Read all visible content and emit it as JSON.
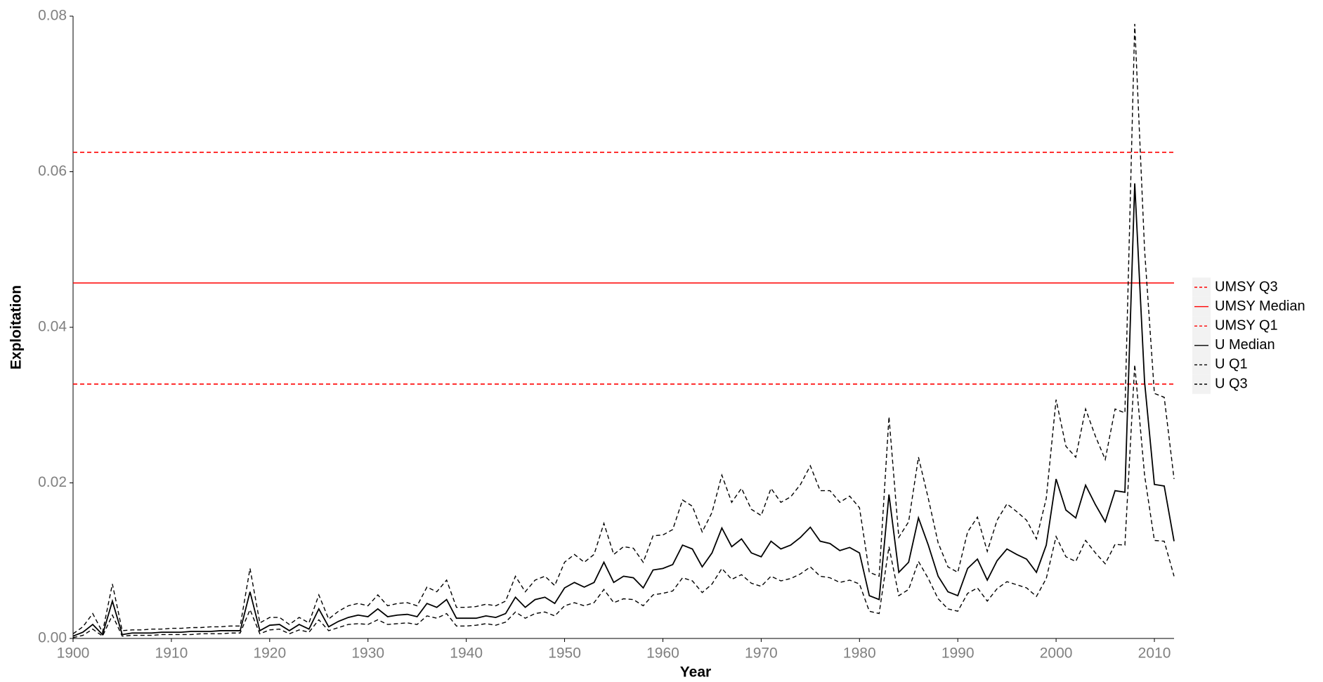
{
  "chart_data": {
    "type": "line",
    "x_label": "Year",
    "y_label": "Exploitation",
    "x": [
      1900,
      1901,
      1902,
      1903,
      1904,
      1905,
      1906,
      1907,
      1908,
      1909,
      1910,
      1911,
      1912,
      1913,
      1914,
      1915,
      1916,
      1917,
      1918,
      1919,
      1920,
      1921,
      1922,
      1923,
      1924,
      1925,
      1926,
      1927,
      1928,
      1929,
      1930,
      1931,
      1932,
      1933,
      1934,
      1935,
      1936,
      1937,
      1938,
      1939,
      1940,
      1941,
      1942,
      1943,
      1944,
      1945,
      1946,
      1947,
      1948,
      1949,
      1950,
      1951,
      1952,
      1953,
      1954,
      1955,
      1956,
      1957,
      1958,
      1959,
      1960,
      1961,
      1962,
      1963,
      1964,
      1965,
      1966,
      1967,
      1968,
      1969,
      1970,
      1971,
      1972,
      1973,
      1974,
      1975,
      1976,
      1977,
      1978,
      1979,
      1980,
      1981,
      1982,
      1983,
      1984,
      1985,
      1986,
      1987,
      1988,
      1989,
      1990,
      1991,
      1992,
      1993,
      1994,
      1995,
      1996,
      1997,
      1998,
      1999,
      2000,
      2001,
      2002,
      2003,
      2004,
      2005,
      2006,
      2007,
      2008,
      2009,
      2010,
      2011,
      2012
    ],
    "hlines": [
      {
        "name": "UMSY Q3",
        "color": "#ff0000",
        "dash": true,
        "value": 0.0625
      },
      {
        "name": "UMSY Median",
        "color": "#ff0000",
        "dash": false,
        "value": 0.0457
      },
      {
        "name": "UMSY Q1",
        "color": "#ff0000",
        "dash": true,
        "value": 0.0327
      }
    ],
    "series": [
      {
        "name": "U Median",
        "color": "#000000",
        "dash": false,
        "values": [
          0.0003,
          0.0008,
          0.0018,
          0.0005,
          0.0048,
          0.0005,
          0.0007,
          0.0007,
          0.0007,
          0.0008,
          0.0008,
          0.0008,
          0.0009,
          0.0009,
          0.0009,
          0.001,
          0.001,
          0.001,
          0.006,
          0.001,
          0.0017,
          0.0018,
          0.001,
          0.0018,
          0.0012,
          0.0038,
          0.0015,
          0.0022,
          0.0027,
          0.003,
          0.0028,
          0.0038,
          0.0028,
          0.003,
          0.0031,
          0.0028,
          0.0045,
          0.004,
          0.005,
          0.0026,
          0.0026,
          0.0026,
          0.0029,
          0.0027,
          0.0032,
          0.0053,
          0.004,
          0.005,
          0.0053,
          0.0045,
          0.0065,
          0.0072,
          0.0066,
          0.0072,
          0.0098,
          0.0072,
          0.008,
          0.0078,
          0.0065,
          0.0088,
          0.009,
          0.0095,
          0.012,
          0.0115,
          0.0092,
          0.011,
          0.0142,
          0.0118,
          0.0128,
          0.011,
          0.0105,
          0.0125,
          0.0115,
          0.012,
          0.013,
          0.0143,
          0.0125,
          0.0122,
          0.0113,
          0.0117,
          0.011,
          0.0055,
          0.005,
          0.0185,
          0.0085,
          0.0098,
          0.0155,
          0.012,
          0.008,
          0.006,
          0.0055,
          0.009,
          0.0102,
          0.0075,
          0.01,
          0.0115,
          0.0108,
          0.0102,
          0.0085,
          0.012,
          0.0205,
          0.0165,
          0.0155,
          0.0197,
          0.0172,
          0.015,
          0.019,
          0.0188,
          0.0585,
          0.033,
          0.0198,
          0.0196,
          0.0125
        ]
      },
      {
        "name": "U Q1",
        "color": "#000000",
        "dash": true,
        "values": [
          0.0001,
          0.0004,
          0.0012,
          0.0003,
          0.003,
          0.0003,
          0.0004,
          0.0004,
          0.0004,
          0.0005,
          0.0005,
          0.0005,
          0.0005,
          0.0006,
          0.0006,
          0.0006,
          0.0007,
          0.0007,
          0.0037,
          0.0006,
          0.0011,
          0.0012,
          0.0006,
          0.0011,
          0.0008,
          0.0024,
          0.001,
          0.0014,
          0.0018,
          0.0019,
          0.0018,
          0.0024,
          0.0018,
          0.0019,
          0.002,
          0.0018,
          0.0029,
          0.0026,
          0.0032,
          0.0016,
          0.0016,
          0.0017,
          0.0019,
          0.0017,
          0.0021,
          0.0034,
          0.0026,
          0.0032,
          0.0034,
          0.0029,
          0.0042,
          0.0046,
          0.0042,
          0.0046,
          0.0063,
          0.0046,
          0.0051,
          0.005,
          0.0042,
          0.0056,
          0.0058,
          0.0061,
          0.0078,
          0.0074,
          0.0059,
          0.007,
          0.009,
          0.0076,
          0.0082,
          0.0071,
          0.0067,
          0.008,
          0.0074,
          0.0077,
          0.0083,
          0.0092,
          0.008,
          0.0078,
          0.0072,
          0.0075,
          0.007,
          0.0035,
          0.0032,
          0.0118,
          0.0055,
          0.0063,
          0.0099,
          0.0077,
          0.0051,
          0.0038,
          0.0035,
          0.0058,
          0.0065,
          0.0048,
          0.0064,
          0.0073,
          0.0069,
          0.0065,
          0.0054,
          0.0077,
          0.0131,
          0.0105,
          0.0099,
          0.0126,
          0.011,
          0.0096,
          0.0121,
          0.012,
          0.0352,
          0.021,
          0.0126,
          0.0125,
          0.008
        ]
      },
      {
        "name": "U Q3",
        "color": "#000000",
        "dash": true,
        "values": [
          0.0006,
          0.0015,
          0.0032,
          0.0008,
          0.007,
          0.001,
          0.0011,
          0.0011,
          0.0012,
          0.0012,
          0.0013,
          0.0013,
          0.0014,
          0.0014,
          0.0015,
          0.0015,
          0.0016,
          0.0016,
          0.009,
          0.002,
          0.0027,
          0.0027,
          0.0018,
          0.0027,
          0.002,
          0.0056,
          0.0025,
          0.0035,
          0.0042,
          0.0045,
          0.0042,
          0.0056,
          0.0042,
          0.0045,
          0.0046,
          0.0042,
          0.0066,
          0.006,
          0.0075,
          0.004,
          0.004,
          0.0041,
          0.0044,
          0.0042,
          0.0048,
          0.008,
          0.006,
          0.0075,
          0.008,
          0.0068,
          0.0098,
          0.0108,
          0.0098,
          0.0108,
          0.0148,
          0.0108,
          0.0118,
          0.0116,
          0.0098,
          0.0132,
          0.0133,
          0.014,
          0.0178,
          0.017,
          0.0137,
          0.0162,
          0.021,
          0.0175,
          0.0193,
          0.0166,
          0.0158,
          0.0193,
          0.0175,
          0.0182,
          0.0198,
          0.0222,
          0.019,
          0.019,
          0.0175,
          0.0183,
          0.0168,
          0.0085,
          0.008,
          0.0285,
          0.013,
          0.015,
          0.0233,
          0.018,
          0.0123,
          0.0092,
          0.0085,
          0.0137,
          0.0156,
          0.0112,
          0.0152,
          0.0173,
          0.0163,
          0.0152,
          0.0128,
          0.018,
          0.0307,
          0.0247,
          0.0233,
          0.0295,
          0.026,
          0.023,
          0.0295,
          0.029,
          0.079,
          0.05,
          0.0315,
          0.031,
          0.0205
        ]
      }
    ],
    "xlim": [
      1900,
      2012
    ],
    "xticks": [
      1900,
      1910,
      1920,
      1930,
      1940,
      1950,
      1960,
      1970,
      1980,
      1990,
      2000,
      2010
    ],
    "ylim": [
      0,
      0.08
    ],
    "yticks": [
      {
        "value": 0,
        "label": "0.00"
      },
      {
        "value": 0.02,
        "label": "0.02"
      },
      {
        "value": 0.04,
        "label": "0.04"
      },
      {
        "value": 0.06,
        "label": "0.06"
      },
      {
        "value": 0.08,
        "label": "0.08"
      }
    ],
    "grid": false,
    "legend_position": "right"
  }
}
